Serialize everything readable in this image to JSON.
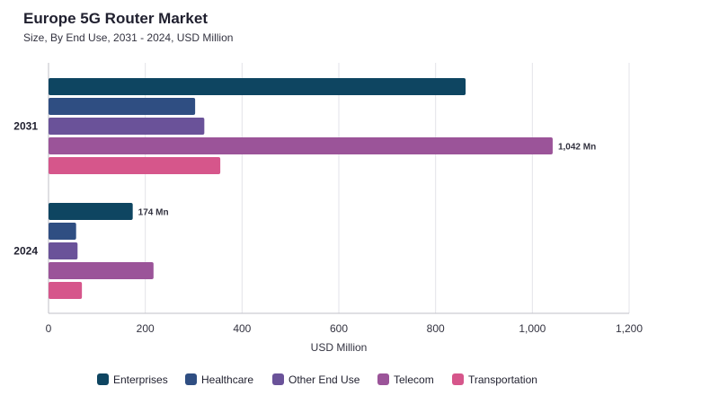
{
  "chart_data": {
    "type": "bar",
    "orientation": "horizontal",
    "title": "Europe 5G Router Market",
    "subtitle": "Size, By End Use, 2031 - 2024, USD Million",
    "xlabel": "USD Million",
    "ylabel": "",
    "xlim": [
      0,
      1200
    ],
    "xticks": [
      0,
      200,
      400,
      600,
      800,
      1000,
      1200
    ],
    "xtick_labels": [
      "0",
      "200",
      "400",
      "600",
      "800",
      "1,000",
      "1,200"
    ],
    "grid": true,
    "legend_position": "bottom",
    "categories": [
      "2031",
      "2024"
    ],
    "series": [
      {
        "name": "Enterprises",
        "color": "#0e4561",
        "values": [
          862,
          174
        ]
      },
      {
        "name": "Healthcare",
        "color": "#2f4e82",
        "values": [
          303,
          57
        ]
      },
      {
        "name": "Other End Use",
        "color": "#6a5299",
        "values": [
          322,
          60
        ]
      },
      {
        "name": "Telecom",
        "color": "#9b5499",
        "values": [
          1042,
          217
        ]
      },
      {
        "name": "Transportation",
        "color": "#d6568b",
        "values": [
          355,
          69
        ]
      }
    ],
    "annotations": [
      {
        "category": "2031",
        "series": "Telecom",
        "text": "1,042 Mn"
      },
      {
        "category": "2024",
        "series": "Enterprises",
        "text": "174 Mn"
      }
    ]
  }
}
